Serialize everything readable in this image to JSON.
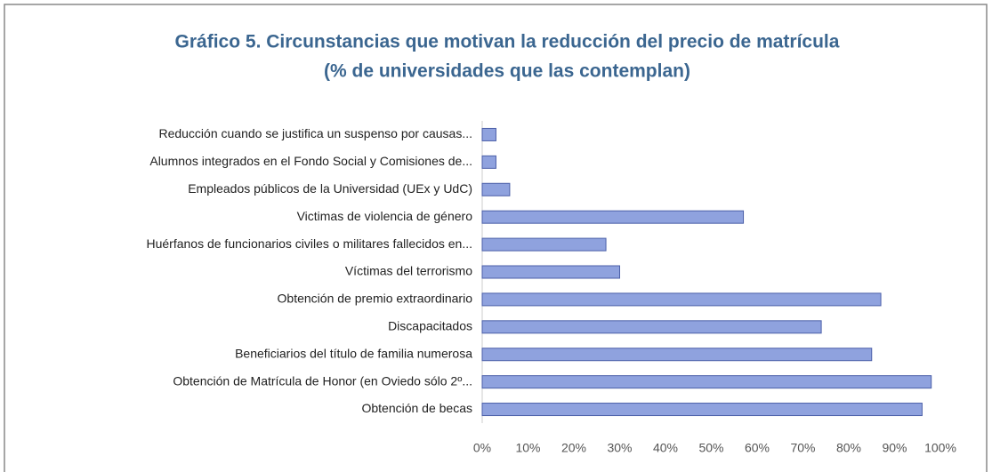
{
  "chart_data": {
    "type": "barh",
    "title": "Gráfico 5. Circunstancias que motivan la reducción del precio de matrícula",
    "subtitle": "(% de universidades que las contemplan)",
    "categories": [
      "Reducción cuando se justifica un suspenso por causas...",
      "Alumnos integrados en el Fondo Social y Comisiones de...",
      "Empleados públicos de la Universidad (UEx y UdC)",
      "Victimas de violencia de género",
      "Huérfanos de funcionarios civiles o militares fallecidos en...",
      "Víctimas del terrorismo",
      "Obtención de premio extraordinario",
      "Discapacitados",
      "Beneficiarios del título de familia numerosa",
      "Obtención de Matrícula de Honor (en Oviedo sólo 2º...",
      "Obtención de becas"
    ],
    "values": [
      3,
      3,
      6,
      57,
      27,
      30,
      87,
      74,
      85,
      98,
      96
    ],
    "color": "#8fa2de",
    "xlim": [
      0,
      100
    ],
    "xticks": [
      {
        "value": 0,
        "label": "0%"
      },
      {
        "value": 10,
        "label": "10%"
      },
      {
        "value": 20,
        "label": "20%"
      },
      {
        "value": 30,
        "label": "30%"
      },
      {
        "value": 40,
        "label": "40%"
      },
      {
        "value": 50,
        "label": "50%"
      },
      {
        "value": 60,
        "label": "60%"
      },
      {
        "value": 70,
        "label": "70%"
      },
      {
        "value": 80,
        "label": "80%"
      },
      {
        "value": 90,
        "label": "90%"
      },
      {
        "value": 100,
        "label": "100%"
      }
    ],
    "grid": false
  }
}
